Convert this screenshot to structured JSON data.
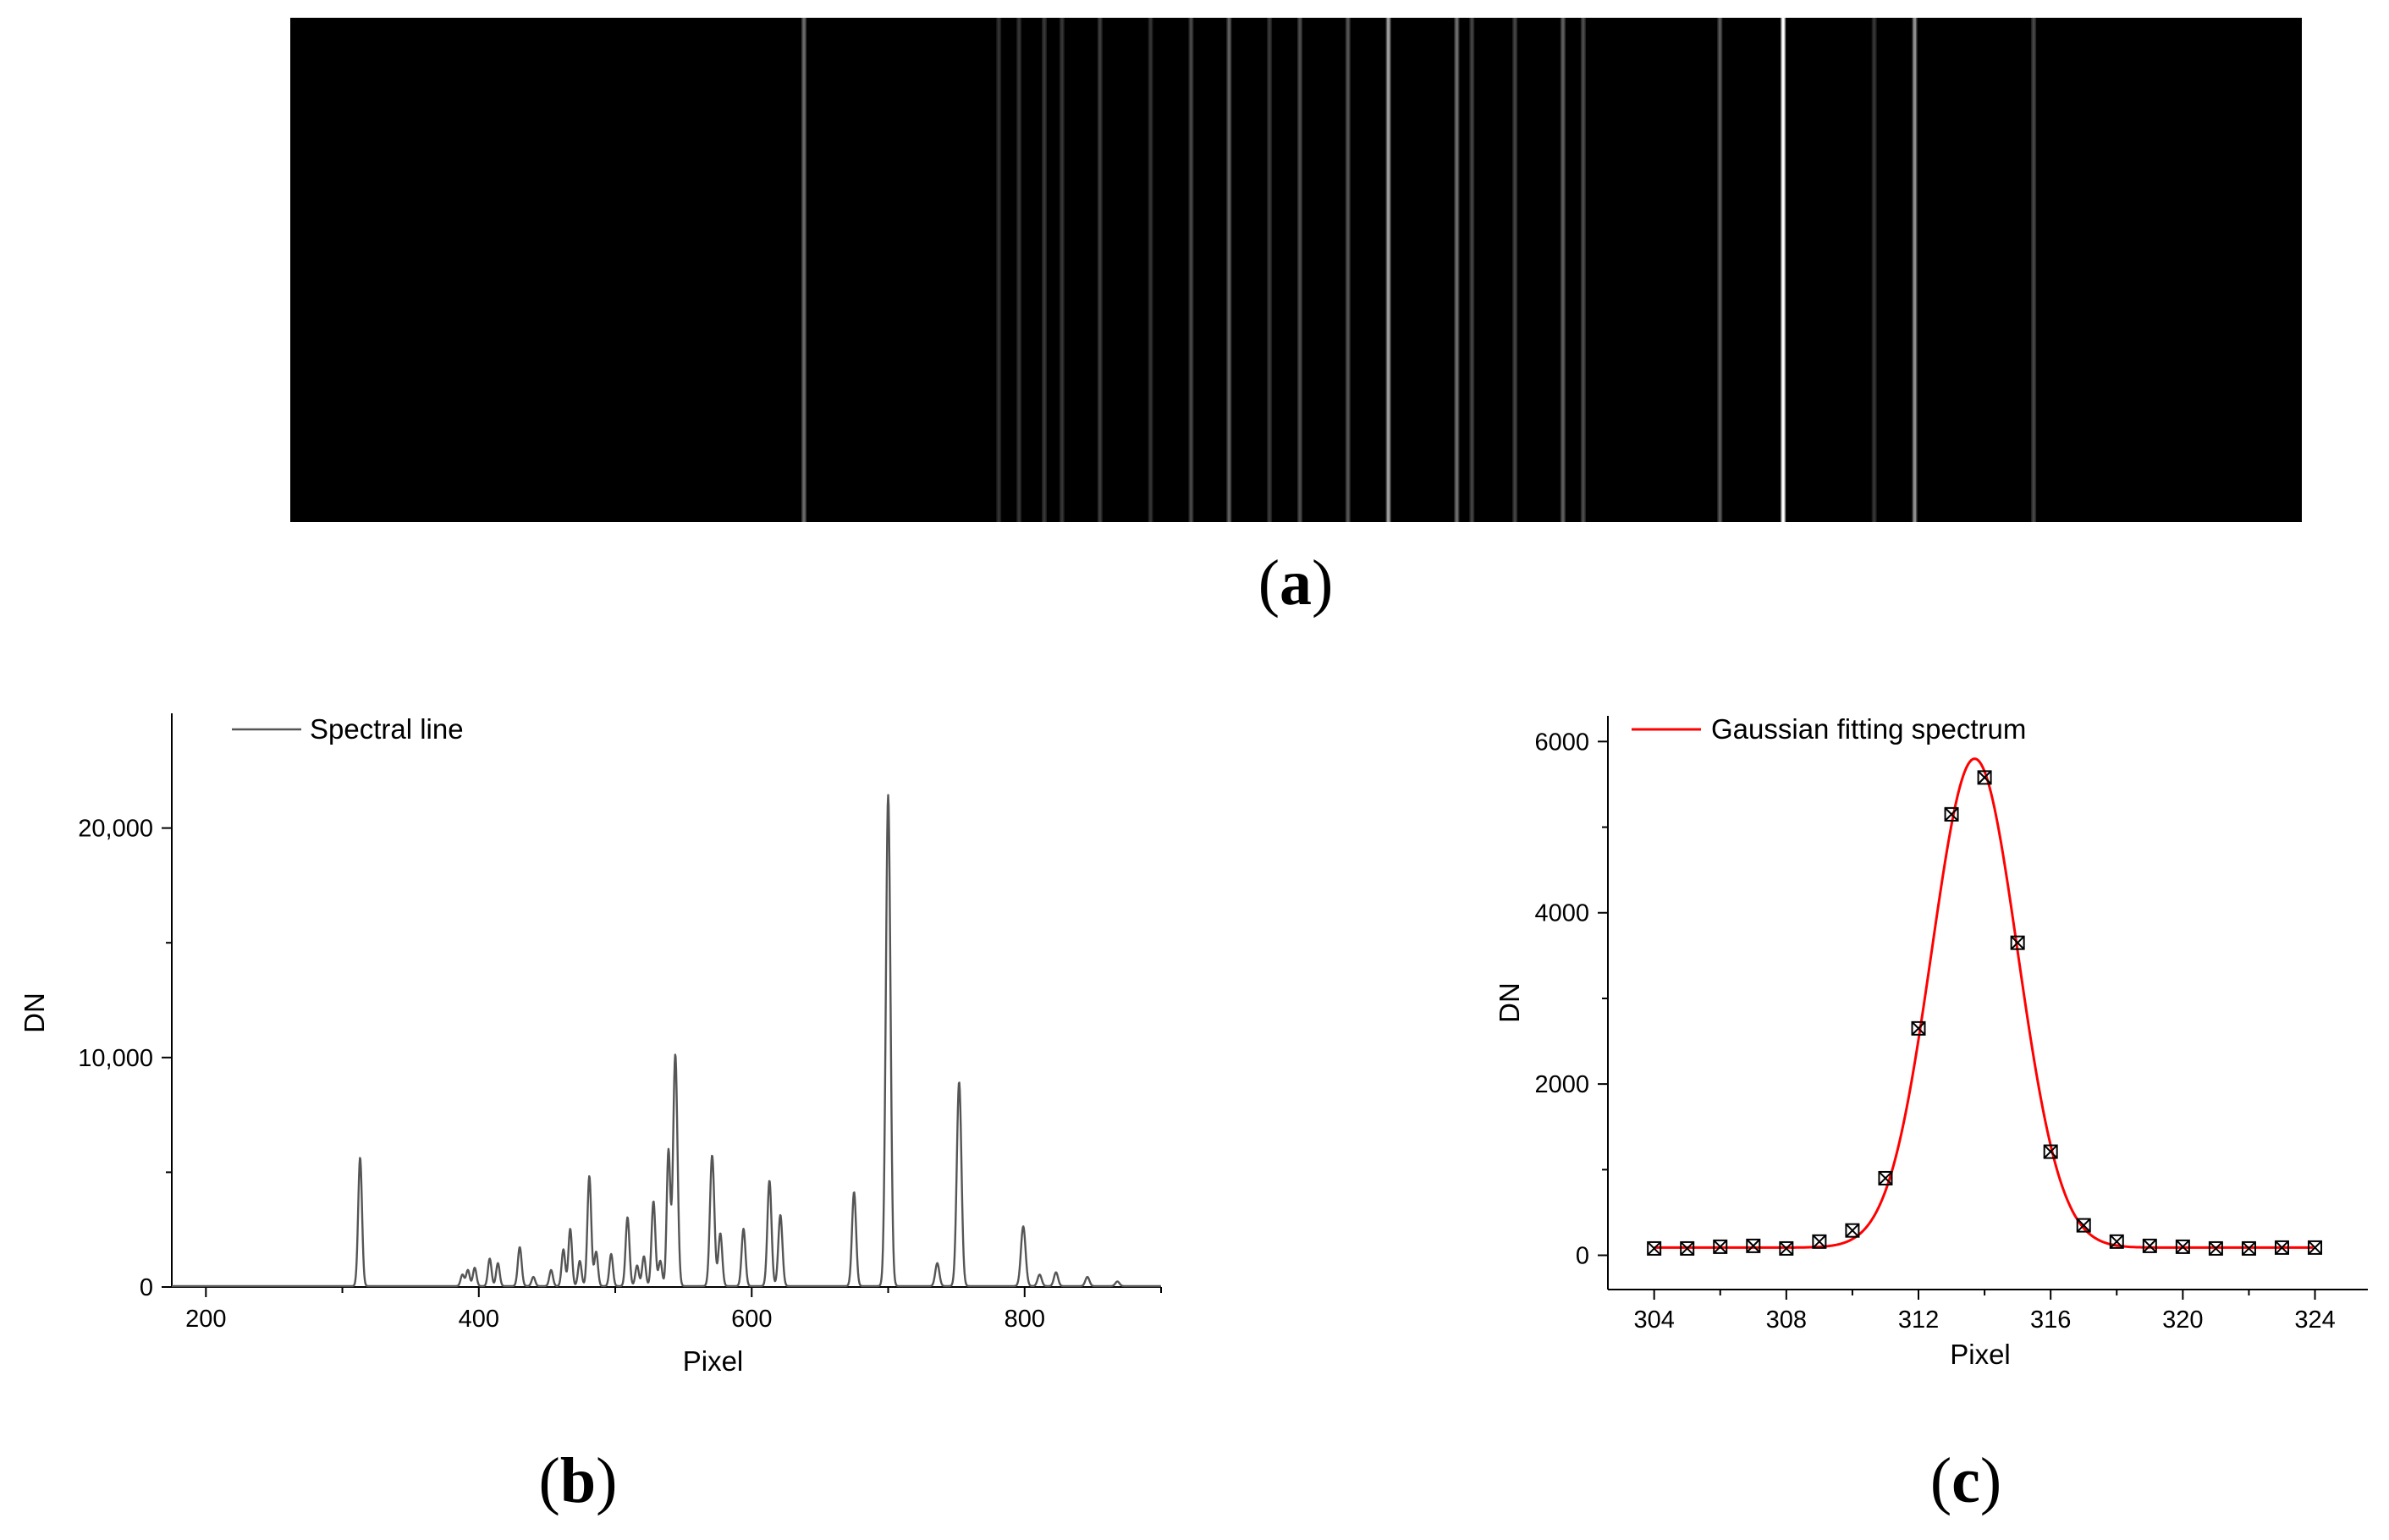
{
  "figure": {
    "panel_a": {
      "label": "a",
      "background": "#000000"
    },
    "panel_b": {
      "label": "b"
    },
    "panel_c": {
      "label": "c"
    }
  },
  "chart_data": [
    {
      "type": "image",
      "panel": "a",
      "description_of_content": "spectral lines",
      "lines": [
        {
          "pixel": 313,
          "intensity": 0.26
        },
        {
          "pixel": 390,
          "intensity": 0.04
        },
        {
          "pixel": 398,
          "intensity": 0.05
        },
        {
          "pixel": 408,
          "intensity": 0.06
        },
        {
          "pixel": 415,
          "intensity": 0.05
        },
        {
          "pixel": 430,
          "intensity": 0.08
        },
        {
          "pixel": 450,
          "intensity": 0.04
        },
        {
          "pixel": 466,
          "intensity": 0.12
        },
        {
          "pixel": 481,
          "intensity": 0.22
        },
        {
          "pixel": 497,
          "intensity": 0.07
        },
        {
          "pixel": 509,
          "intensity": 0.14
        },
        {
          "pixel": 528,
          "intensity": 0.17
        },
        {
          "pixel": 544,
          "intensity": 0.47
        },
        {
          "pixel": 571,
          "intensity": 0.27
        },
        {
          "pixel": 577,
          "intensity": 0.1
        },
        {
          "pixel": 594,
          "intensity": 0.11
        },
        {
          "pixel": 613,
          "intensity": 0.21
        },
        {
          "pixel": 621,
          "intensity": 0.14
        },
        {
          "pixel": 675,
          "intensity": 0.19
        },
        {
          "pixel": 700,
          "intensity": 1.0
        },
        {
          "pixel": 736,
          "intensity": 0.05
        },
        {
          "pixel": 752,
          "intensity": 0.41
        },
        {
          "pixel": 799,
          "intensity": 0.12
        }
      ]
    },
    {
      "type": "line",
      "panel": "b",
      "xlabel": "Pixel",
      "ylabel": "DN",
      "xlim": [
        175,
        900
      ],
      "ylim": [
        0,
        25000
      ],
      "xticks": [
        200,
        400,
        600,
        800
      ],
      "yticks": [
        0,
        10000,
        20000
      ],
      "ytick_labels": [
        "0",
        "10,000",
        "20,000"
      ],
      "legend": "top-left",
      "color": "#555555",
      "series": [
        {
          "name": "Spectral line",
          "baseline": 40,
          "x_start": 175,
          "x_end": 900,
          "peaks": [
            {
              "x": 313,
              "y": 5600,
              "sigma": 1.4
            },
            {
              "x": 388,
              "y": 500,
              "sigma": 1.3
            },
            {
              "x": 392,
              "y": 700,
              "sigma": 1.3
            },
            {
              "x": 397,
              "y": 800,
              "sigma": 1.3
            },
            {
              "x": 408,
              "y": 1200,
              "sigma": 1.3
            },
            {
              "x": 414,
              "y": 1000,
              "sigma": 1.3
            },
            {
              "x": 430,
              "y": 1700,
              "sigma": 1.4
            },
            {
              "x": 440,
              "y": 400,
              "sigma": 1.3
            },
            {
              "x": 453,
              "y": 700,
              "sigma": 1.3
            },
            {
              "x": 462,
              "y": 1600,
              "sigma": 1.3
            },
            {
              "x": 467,
              "y": 2500,
              "sigma": 1.3
            },
            {
              "x": 474,
              "y": 1100,
              "sigma": 1.3
            },
            {
              "x": 481,
              "y": 4800,
              "sigma": 1.4
            },
            {
              "x": 486,
              "y": 1500,
              "sigma": 1.3
            },
            {
              "x": 497,
              "y": 1400,
              "sigma": 1.3
            },
            {
              "x": 509,
              "y": 3000,
              "sigma": 1.4
            },
            {
              "x": 516,
              "y": 900,
              "sigma": 1.3
            },
            {
              "x": 521,
              "y": 1300,
              "sigma": 1.3
            },
            {
              "x": 528,
              "y": 3700,
              "sigma": 1.4
            },
            {
              "x": 533,
              "y": 1100,
              "sigma": 1.3
            },
            {
              "x": 539,
              "y": 5900,
              "sigma": 1.3
            },
            {
              "x": 544,
              "y": 10100,
              "sigma": 1.6
            },
            {
              "x": 571,
              "y": 5700,
              "sigma": 1.6
            },
            {
              "x": 577,
              "y": 2300,
              "sigma": 1.4
            },
            {
              "x": 594,
              "y": 2500,
              "sigma": 1.4
            },
            {
              "x": 613,
              "y": 4600,
              "sigma": 1.5
            },
            {
              "x": 621,
              "y": 3100,
              "sigma": 1.5
            },
            {
              "x": 675,
              "y": 4100,
              "sigma": 1.5
            },
            {
              "x": 700,
              "y": 21400,
              "sigma": 1.7
            },
            {
              "x": 736,
              "y": 1000,
              "sigma": 1.5
            },
            {
              "x": 752,
              "y": 8900,
              "sigma": 1.7
            },
            {
              "x": 799,
              "y": 2600,
              "sigma": 1.7
            },
            {
              "x": 811,
              "y": 500,
              "sigma": 1.5
            },
            {
              "x": 823,
              "y": 600,
              "sigma": 1.5
            },
            {
              "x": 846,
              "y": 400,
              "sigma": 1.5
            },
            {
              "x": 868,
              "y": 200,
              "sigma": 1.5
            }
          ]
        }
      ]
    },
    {
      "type": "scatter",
      "panel": "c",
      "xlabel": "Pixel",
      "ylabel": "DN",
      "xlim": [
        302.6,
        325.6
      ],
      "ylim": [
        -400,
        6300
      ],
      "xticks": [
        304,
        308,
        312,
        316,
        320,
        324
      ],
      "yticks": [
        0,
        2000,
        4000,
        6000
      ],
      "legend": "top-left",
      "series": [
        {
          "kind": "points",
          "x": [
            304,
            305,
            306,
            307,
            308,
            309,
            310,
            311,
            312,
            313,
            314,
            315,
            316,
            317,
            318,
            319,
            320,
            321,
            322,
            323,
            324
          ],
          "y": [
            80,
            80,
            100,
            110,
            80,
            160,
            290,
            900,
            2650,
            5150,
            5580,
            3650,
            1210,
            350,
            160,
            110,
            100,
            80,
            80,
            90,
            90
          ]
        },
        {
          "kind": "curve",
          "name": "Gaussian fitting spectrum",
          "color": "#ff0000",
          "gaussian": {
            "amplitude": 5710,
            "center": 313.7,
            "sigma": 1.3,
            "offset": 90
          }
        }
      ]
    }
  ]
}
